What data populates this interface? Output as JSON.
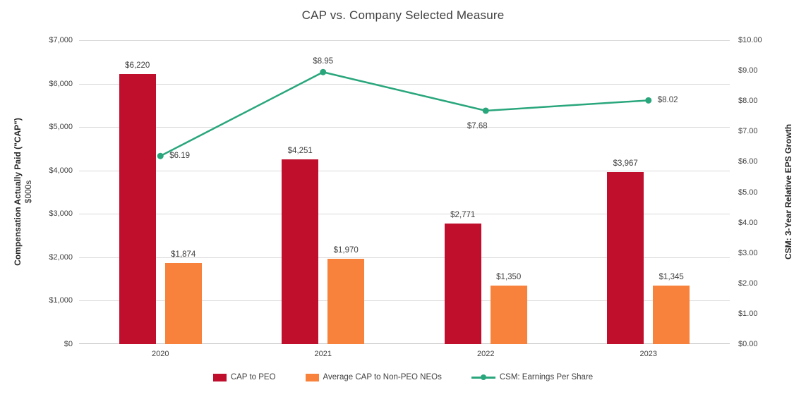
{
  "chart_data": {
    "type": "combo",
    "title": "CAP vs. Company Selected Measure",
    "categories": [
      "2020",
      "2021",
      "2022",
      "2023"
    ],
    "series": [
      {
        "name": "CAP to PEO",
        "type": "bar",
        "axis": "left",
        "color": "#C00F2D",
        "values": [
          6220,
          4251,
          2771,
          3967
        ],
        "labels": [
          "$6,220",
          "$4,251",
          "$2,771",
          "$3,967"
        ]
      },
      {
        "name": "Average CAP to Non-PEO NEOs",
        "type": "bar",
        "axis": "left",
        "color": "#F8823C",
        "values": [
          1874,
          1970,
          1350,
          1345
        ],
        "labels": [
          "$1,874",
          "$1,970",
          "$1,350",
          "$1,345"
        ]
      },
      {
        "name": "CSM: Earnings Per Share",
        "type": "line",
        "axis": "right",
        "color": "#29A67C",
        "values": [
          6.19,
          8.95,
          7.68,
          8.02
        ],
        "labels": [
          "$6.19",
          "$8.95",
          "$7.68",
          "$8.02"
        ],
        "label_positions": [
          "right",
          "above",
          "below",
          "right"
        ]
      }
    ],
    "left_axis": {
      "title": "Compensation Actually Paid (\"CAP\")",
      "subtitle": "$000s",
      "min": 0,
      "max": 7000,
      "tick_labels": [
        "$0",
        "$1,000",
        "$2,000",
        "$3,000",
        "$4,000",
        "$5,000",
        "$6,000",
        "$7,000"
      ]
    },
    "right_axis": {
      "title": "CSM: 3-Year Relative EPS Growth",
      "min": 0,
      "max": 10,
      "tick_labels": [
        "$0.00",
        "$1.00",
        "$2.00",
        "$3.00",
        "$4.00",
        "$5.00",
        "$6.00",
        "$7.00",
        "$8.00",
        "$9.00",
        "$10.00"
      ]
    },
    "grid": true,
    "legend_position": "bottom"
  }
}
